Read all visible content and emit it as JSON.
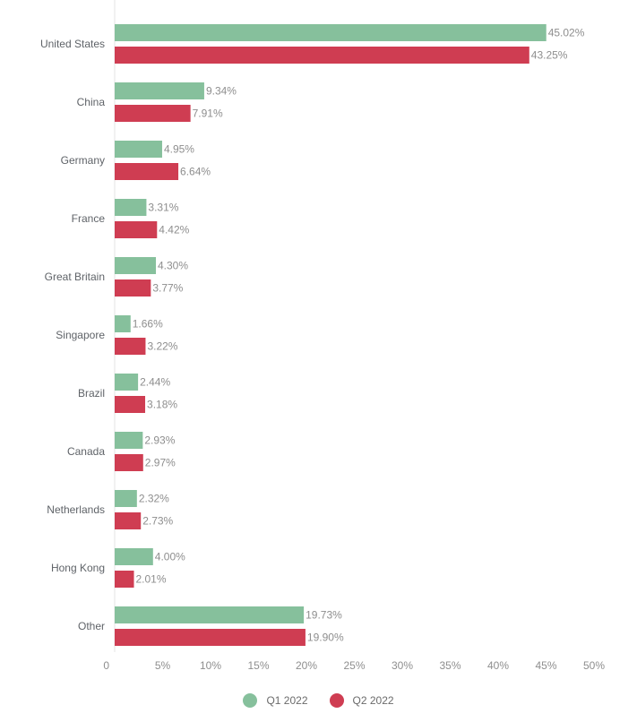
{
  "chart_data": {
    "type": "bar",
    "orientation": "horizontal",
    "categories": [
      "United States",
      "China",
      "Germany",
      "France",
      "Great Britain",
      "Singapore",
      "Brazil",
      "Canada",
      "Netherlands",
      "Hong Kong",
      "Other"
    ],
    "series": [
      {
        "name": "Q1 2022",
        "color": "#86c09c",
        "values": [
          45.02,
          9.34,
          4.95,
          3.31,
          4.3,
          1.66,
          2.44,
          2.93,
          2.32,
          4.0,
          19.73
        ],
        "labels": [
          "45.02%",
          "9.34%",
          "4.95%",
          "3.31%",
          "4.30%",
          "1.66%",
          "2.44%",
          "2.93%",
          "2.32%",
          "4.00%",
          "19.73%"
        ]
      },
      {
        "name": "Q2 2022",
        "color": "#cf3d52",
        "values": [
          43.25,
          7.91,
          6.64,
          4.42,
          3.77,
          3.22,
          3.18,
          2.97,
          2.73,
          2.01,
          19.9
        ],
        "labels": [
          "43.25%",
          "7.91%",
          "6.64%",
          "4.42%",
          "3.77%",
          "3.22%",
          "3.18%",
          "2.97%",
          "2.73%",
          "2.01%",
          "19.90%"
        ]
      }
    ],
    "xlim": [
      0,
      50
    ],
    "x_ticks": [
      "0",
      "5%",
      "10%",
      "15%",
      "20%",
      "25%",
      "30%",
      "35%",
      "40%",
      "45%",
      "50%"
    ],
    "legend_position": "bottom-center",
    "grid": false
  },
  "legend": {
    "q1": "Q1 2022",
    "q2": "Q2 2022"
  }
}
